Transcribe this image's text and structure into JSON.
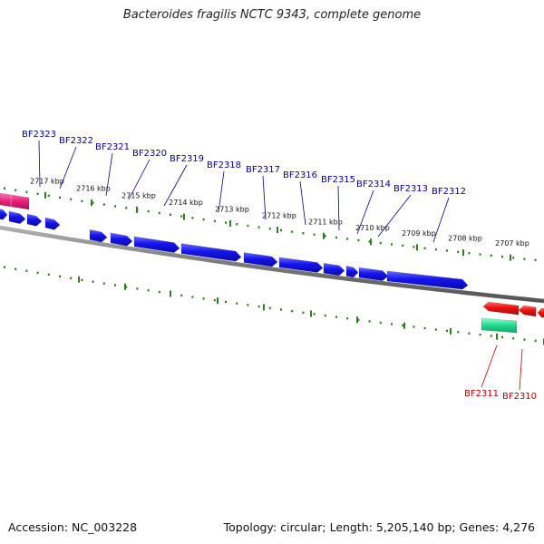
{
  "title": "Bacteroides fragilis NCTC 9343, complete genome",
  "footer": {
    "accession": "Accession: NC_003228",
    "summary": "Topology: circular; Length: 5,205,140 bp; Genes: 4,276"
  },
  "colors": {
    "forward_gene": "#1010ee",
    "reverse_gene": "#ee1010",
    "rna_gene": "#20d890",
    "pink_gene": "#e8207a",
    "forward_label": "#000090",
    "reverse_label": "#c00000",
    "scale_tick": "#2e7d1e",
    "backbone": "#808080"
  },
  "scale_labels": [
    "2717 kbp",
    "2716 kbp",
    "2715 kbp",
    "2714 kbp",
    "2713 kbp",
    "2712 kbp",
    "2711 kbp",
    "2710 kbp",
    "2709 kbp",
    "2708 kbp",
    "2707 kbp"
  ],
  "forward_genes": [
    "BF2323",
    "BF2322",
    "BF2321",
    "BF2320",
    "BF2319",
    "BF2318",
    "BF2317",
    "BF2316",
    "BF2315",
    "BF2314",
    "BF2313",
    "BF2312"
  ],
  "reverse_genes": [
    "BF2311",
    "BF2310"
  ]
}
